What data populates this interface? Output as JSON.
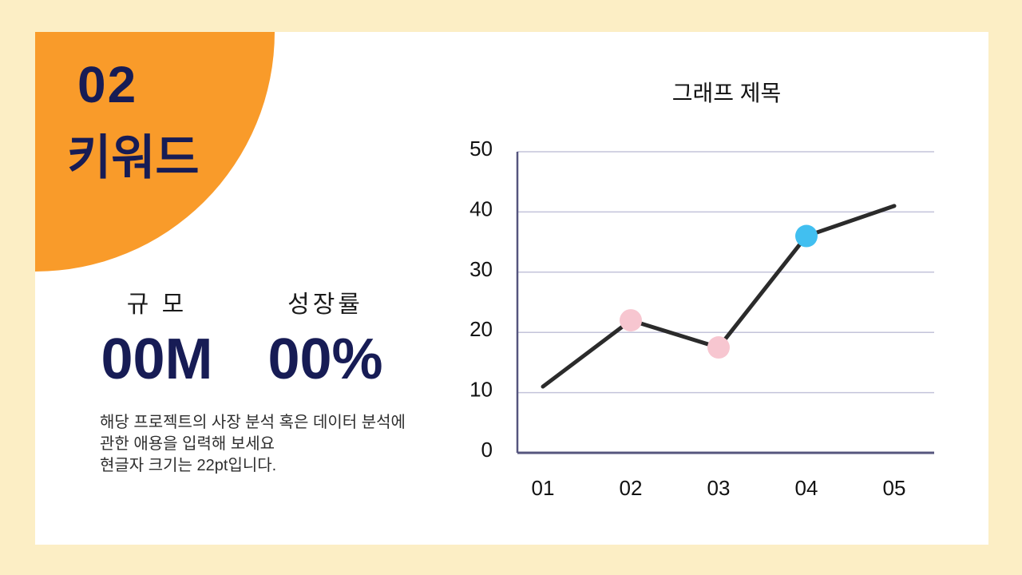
{
  "slide": {
    "background_color": "#FCEEC5",
    "card_color": "#FFFFFF"
  },
  "left_panel": {
    "section_number": "02",
    "section_title": "키워드",
    "accent_color": "#F99B2A",
    "text_color": "#171C55",
    "metrics": [
      {
        "label": "규 모",
        "value": "00M"
      },
      {
        "label": "성장률",
        "value": "00%"
      }
    ],
    "description": "해당 프로젝트의 사장 분석 혹은 데이터 분석에\n관한 애용을 입력해 보세요\n현글자 크기는 22pt입니다."
  },
  "chart_data": {
    "type": "line",
    "title": "그래프 제목",
    "categories": [
      "01",
      "02",
      "03",
      "04",
      "05"
    ],
    "values": [
      11,
      22,
      17.5,
      36,
      41
    ],
    "ylim": [
      0,
      50
    ],
    "yticks": [
      0,
      10,
      20,
      30,
      40,
      50
    ],
    "xlabel": "",
    "ylabel": "",
    "grid": true,
    "legend": false,
    "line_color": "#2B2B2B",
    "axis_color": "#55557E",
    "grid_color": "#C3C3DA",
    "tick_label_color": "#111111",
    "point_colors": [
      null,
      "#F7C6D0",
      "#F7C6D0",
      "#41BFF0",
      null
    ],
    "point_radius": 14
  }
}
